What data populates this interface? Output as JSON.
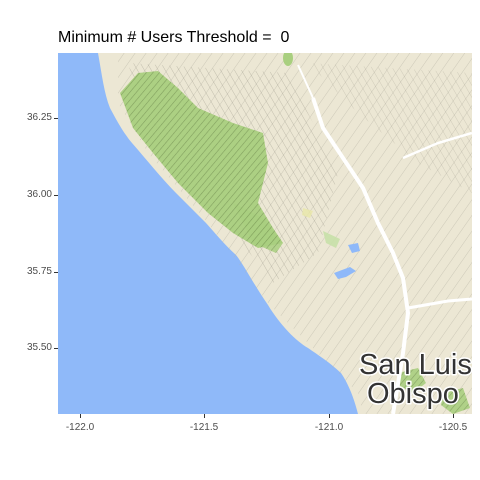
{
  "title": "Minimum # Users Threshold =  0",
  "map": {
    "labels": [
      "San Luis",
      "Obispo"
    ],
    "colors": {
      "ocean": "#8fb9f9",
      "land": "#ece7d4",
      "vegetation": "#a9cf7f",
      "roads": "#ffffff"
    }
  },
  "axes": {
    "x": {
      "ticks": [
        -122.0,
        -121.5,
        -121.0,
        -120.5
      ],
      "tick_labels": [
        "-122.0",
        "-121.5",
        "-121.0",
        "-120.5"
      ],
      "range": [
        -122.13,
        -120.43
      ]
    },
    "y": {
      "ticks": [
        36.25,
        36.0,
        35.75,
        35.5
      ],
      "tick_labels": [
        "36.25",
        "36.00",
        "35.75",
        "35.50"
      ],
      "range": [
        35.27,
        36.46
      ]
    }
  }
}
